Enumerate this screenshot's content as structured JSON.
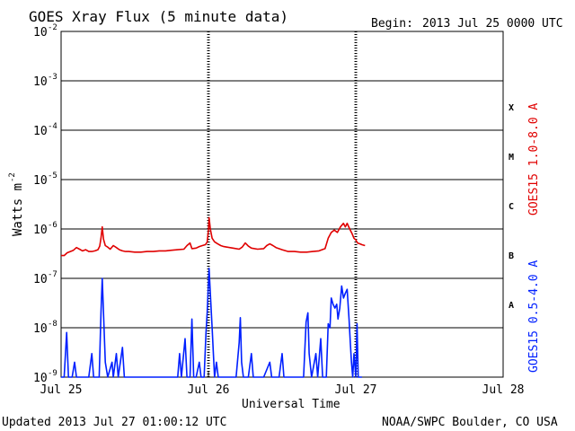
{
  "chart_data": {
    "type": "line",
    "title": "GOES Xray Flux (5 minute data)",
    "begin_label": "Begin:",
    "begin_value": "2013 Jul 25 0000 UTC",
    "xlabel": "Universal Time",
    "ylabel_main": "Watts m",
    "ylabel_exp": "-2",
    "updated": "Updated 2013 Jul 27 01:00:12 UTC",
    "source": "NOAA/SWPC Boulder, CO USA",
    "scale": "log",
    "xlim": [
      0,
      72
    ],
    "x_unit": "hours since 2013 Jul 25 0000 UTC",
    "ylim": [
      1e-09,
      0.01
    ],
    "y_ticks": [
      {
        "base": "10",
        "exp": "-9",
        "value": 1e-09
      },
      {
        "base": "10",
        "exp": "-8",
        "value": 1e-08
      },
      {
        "base": "10",
        "exp": "-7",
        "value": 1e-07
      },
      {
        "base": "10",
        "exp": "-6",
        "value": 1e-06
      },
      {
        "base": "10",
        "exp": "-5",
        "value": 1e-05
      },
      {
        "base": "10",
        "exp": "-4",
        "value": 0.0001
      },
      {
        "base": "10",
        "exp": "-3",
        "value": 0.001
      },
      {
        "base": "10",
        "exp": "-2",
        "value": 0.01
      }
    ],
    "x_ticks": [
      {
        "label": "Jul 25",
        "x": 0
      },
      {
        "label": "Jul 26",
        "x": 24
      },
      {
        "label": "Jul 27",
        "x": 48
      },
      {
        "label": "Jul 28",
        "x": 72
      }
    ],
    "flare_classes": [
      {
        "label": "X",
        "at": 0.0003
      },
      {
        "label": "M",
        "at": 3e-05
      },
      {
        "label": "C",
        "at": 3e-06
      },
      {
        "label": "B",
        "at": 3e-07
      },
      {
        "label": "A",
        "at": 3e-08
      }
    ],
    "grid": true,
    "legend_placement": "right (vertical)",
    "series": [
      {
        "name": "GOES15 1.0-8.0 A",
        "color": "#e00000",
        "points": [
          [
            0,
            2.9e-07
          ],
          [
            0.5,
            2.9e-07
          ],
          [
            1,
            3.3e-07
          ],
          [
            1.5,
            3.5e-07
          ],
          [
            2,
            3.7e-07
          ],
          [
            2.5,
            4.2e-07
          ],
          [
            3,
            3.9e-07
          ],
          [
            3.5,
            3.6e-07
          ],
          [
            4,
            3.8e-07
          ],
          [
            4.5,
            3.5e-07
          ],
          [
            5,
            3.5e-07
          ],
          [
            5.5,
            3.6e-07
          ],
          [
            6,
            3.8e-07
          ],
          [
            6.3,
            4.5e-07
          ],
          [
            6.5,
            6.5e-07
          ],
          [
            6.7,
            1.1e-06
          ],
          [
            6.9,
            6.2e-07
          ],
          [
            7.2,
            4.6e-07
          ],
          [
            7.6,
            4.3e-07
          ],
          [
            8,
            3.9e-07
          ],
          [
            8.5,
            4.6e-07
          ],
          [
            9,
            4.2e-07
          ],
          [
            9.5,
            3.8e-07
          ],
          [
            10,
            3.6e-07
          ],
          [
            10.5,
            3.5e-07
          ],
          [
            11,
            3.5e-07
          ],
          [
            12,
            3.4e-07
          ],
          [
            13,
            3.4e-07
          ],
          [
            14,
            3.5e-07
          ],
          [
            15,
            3.5e-07
          ],
          [
            16,
            3.6e-07
          ],
          [
            17,
            3.6e-07
          ],
          [
            18,
            3.7e-07
          ],
          [
            19,
            3.8e-07
          ],
          [
            20,
            3.9e-07
          ],
          [
            20.5,
            4.6e-07
          ],
          [
            21,
            5.2e-07
          ],
          [
            21.3,
            4e-07
          ],
          [
            22,
            4.1e-07
          ],
          [
            22.5,
            4.4e-07
          ],
          [
            23,
            4.6e-07
          ],
          [
            23.5,
            4.8e-07
          ],
          [
            23.8,
            5.4e-07
          ],
          [
            24,
            9.5e-07
          ],
          [
            24.1,
            1.7e-06
          ],
          [
            24.3,
            1e-06
          ],
          [
            24.6,
            6.5e-07
          ],
          [
            25,
            5.5e-07
          ],
          [
            25.5,
            5e-07
          ],
          [
            26,
            4.6e-07
          ],
          [
            26.5,
            4.4e-07
          ],
          [
            27,
            4.3e-07
          ],
          [
            28,
            4.1e-07
          ],
          [
            29,
            3.9e-07
          ],
          [
            29.5,
            4.3e-07
          ],
          [
            30,
            5.2e-07
          ],
          [
            30.5,
            4.5e-07
          ],
          [
            31,
            4.1e-07
          ],
          [
            32,
            3.9e-07
          ],
          [
            33,
            4e-07
          ],
          [
            33.5,
            4.6e-07
          ],
          [
            34,
            5e-07
          ],
          [
            34.5,
            4.6e-07
          ],
          [
            35,
            4.2e-07
          ],
          [
            36,
            3.8e-07
          ],
          [
            37,
            3.5e-07
          ],
          [
            38,
            3.5e-07
          ],
          [
            39,
            3.4e-07
          ],
          [
            40,
            3.4e-07
          ],
          [
            41,
            3.5e-07
          ],
          [
            42,
            3.6e-07
          ],
          [
            43,
            4e-07
          ],
          [
            43.5,
            6.5e-07
          ],
          [
            44,
            8.5e-07
          ],
          [
            44.5,
            9.5e-07
          ],
          [
            45,
            8.5e-07
          ],
          [
            45.5,
            1.1e-06
          ],
          [
            46,
            1.3e-06
          ],
          [
            46.3,
            1.1e-06
          ],
          [
            46.6,
            1.3e-06
          ],
          [
            47,
            1e-06
          ],
          [
            47.4,
            8e-07
          ],
          [
            47.7,
            6.5e-07
          ],
          [
            48,
            6e-07
          ],
          [
            48.3,
            5.2e-07
          ],
          [
            48.7,
            5e-07
          ],
          [
            49,
            4.8e-07
          ],
          [
            49.5,
            4.6e-07
          ]
        ]
      },
      {
        "name": "GOES15 0.5-4.0 A",
        "color": "#0020ff",
        "points": [
          [
            0,
            1e-09
          ],
          [
            0.5,
            1e-09
          ],
          [
            0.9,
            8e-09
          ],
          [
            1.2,
            1e-09
          ],
          [
            1.8,
            1e-09
          ],
          [
            2.2,
            2e-09
          ],
          [
            2.5,
            1e-09
          ],
          [
            3,
            1e-09
          ],
          [
            4.5,
            1e-09
          ],
          [
            5,
            3e-09
          ],
          [
            5.3,
            1e-09
          ],
          [
            6.2,
            1e-09
          ],
          [
            6.5,
            2e-08
          ],
          [
            6.7,
            1e-07
          ],
          [
            6.9,
            2e-08
          ],
          [
            7.2,
            2e-09
          ],
          [
            7.6,
            1e-09
          ],
          [
            8.3,
            2e-09
          ],
          [
            8.5,
            1e-09
          ],
          [
            9,
            3e-09
          ],
          [
            9.3,
            1e-09
          ],
          [
            10,
            4e-09
          ],
          [
            10.3,
            1e-09
          ],
          [
            12,
            1e-09
          ],
          [
            18,
            1e-09
          ],
          [
            19,
            1e-09
          ],
          [
            19.3,
            3e-09
          ],
          [
            19.6,
            1e-09
          ],
          [
            20.2,
            6e-09
          ],
          [
            20.5,
            1e-09
          ],
          [
            21,
            1e-09
          ],
          [
            21.3,
            1.5e-08
          ],
          [
            21.6,
            1e-09
          ],
          [
            22,
            1e-09
          ],
          [
            22.5,
            2e-09
          ],
          [
            22.8,
            1e-09
          ],
          [
            23.3,
            1e-09
          ],
          [
            23.6,
            8e-09
          ],
          [
            23.8,
            2e-08
          ],
          [
            24,
            8e-08
          ],
          [
            24.1,
            1.6e-07
          ],
          [
            24.3,
            5e-08
          ],
          [
            24.6,
            1e-08
          ],
          [
            24.8,
            3e-09
          ],
          [
            25,
            1e-09
          ],
          [
            25.3,
            2e-09
          ],
          [
            25.6,
            1e-09
          ],
          [
            27,
            1e-09
          ],
          [
            28,
            1e-09
          ],
          [
            28.5,
            1e-09
          ],
          [
            29,
            5e-09
          ],
          [
            29.2,
            1.6e-08
          ],
          [
            29.4,
            2e-09
          ],
          [
            29.7,
            1e-09
          ],
          [
            30.5,
            1e-09
          ],
          [
            31,
            3e-09
          ],
          [
            31.3,
            1e-09
          ],
          [
            32,
            1e-09
          ],
          [
            33,
            1e-09
          ],
          [
            34,
            2e-09
          ],
          [
            34.3,
            1e-09
          ],
          [
            35.5,
            1e-09
          ],
          [
            36,
            3e-09
          ],
          [
            36.3,
            1e-09
          ],
          [
            37,
            1e-09
          ],
          [
            39.5,
            1e-09
          ],
          [
            39.9,
            1.3e-08
          ],
          [
            40.2,
            2e-08
          ],
          [
            40.4,
            3e-09
          ],
          [
            40.8,
            1e-09
          ],
          [
            41.5,
            3e-09
          ],
          [
            41.8,
            1e-09
          ],
          [
            42.3,
            6e-09
          ],
          [
            42.6,
            1e-09
          ],
          [
            43.2,
            1e-09
          ],
          [
            43.5,
            1.2e-08
          ],
          [
            43.8,
            1e-08
          ],
          [
            44,
            4e-08
          ],
          [
            44.3,
            3e-08
          ],
          [
            44.6,
            2.5e-08
          ],
          [
            44.9,
            3e-08
          ],
          [
            45.1,
            1.5e-08
          ],
          [
            45.4,
            2.5e-08
          ],
          [
            45.7,
            7e-08
          ],
          [
            46,
            4e-08
          ],
          [
            46.3,
            5e-08
          ],
          [
            46.6,
            6e-08
          ],
          [
            46.9,
            1.5e-08
          ],
          [
            47.1,
            5e-09
          ],
          [
            47.3,
            2e-09
          ],
          [
            47.5,
            1e-09
          ],
          [
            47.7,
            3e-09
          ],
          [
            48,
            1e-09
          ],
          [
            48.2,
            1.2e-08
          ],
          [
            48.4,
            1e-09
          ],
          [
            49,
            1e-09
          ]
        ]
      }
    ]
  }
}
